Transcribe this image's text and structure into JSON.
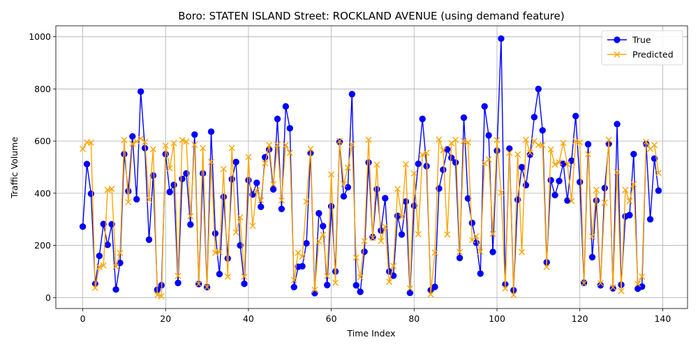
{
  "chart_data": {
    "type": "line",
    "title": "Boro: STATEN ISLAND Street: ROCKLAND AVENUE (using demand feature)",
    "xlabel": "Time Index",
    "ylabel": "Traffic Volume",
    "xlim": [
      -6.5,
      146
    ],
    "ylim": [
      -42,
      1042
    ],
    "xticks": [
      0,
      20,
      40,
      60,
      80,
      100,
      120,
      140
    ],
    "yticks": [
      0,
      200,
      400,
      600,
      800,
      1000
    ],
    "grid": true,
    "legend_position": "top-right",
    "series": [
      {
        "name": "True",
        "color": "#0000ff",
        "marker": "circle",
        "values": [
          272,
          512,
          398,
          52,
          160,
          282,
          202,
          281,
          31,
          133,
          550,
          408,
          618,
          377,
          790,
          573,
          222,
          468,
          30,
          47,
          550,
          405,
          432,
          56,
          455,
          476,
          280,
          625,
          52,
          476,
          40,
          636,
          246,
          90,
          386,
          150,
          454,
          520,
          200,
          53,
          450,
          395,
          440,
          348,
          538,
          568,
          415,
          685,
          340,
          733,
          649,
          40,
          118,
          120,
          208,
          555,
          17,
          323,
          274,
          48,
          350,
          100,
          597,
          388,
          423,
          780,
          47,
          22,
          176,
          518,
          232,
          415,
          257,
          381,
          100,
          84,
          313,
          242,
          368,
          18,
          352,
          513,
          685,
          504,
          28,
          41,
          418,
          490,
          568,
          536,
          518,
          152,
          690,
          380,
          286,
          210,
          92,
          733,
          622,
          175,
          563,
          993,
          50,
          571,
          28,
          375,
          500,
          431,
          548,
          692,
          800,
          641,
          135,
          450,
          393,
          447,
          513,
          372,
          525,
          696,
          443,
          57,
          588,
          155,
          372,
          47,
          420,
          590,
          35,
          665,
          49,
          311,
          316,
          550,
          34,
          42,
          589,
          300,
          533,
          410
        ]
      },
      {
        "name": "Predicted",
        "color": "#ffa500",
        "marker": "x",
        "values": [
          570,
          595,
          594,
          37,
          118,
          123,
          413,
          417,
          119,
          171,
          604,
          366,
          590,
          599,
          610,
          597,
          375,
          569,
          10,
          5,
          583,
          496,
          592,
          83,
          604,
          598,
          312,
          586,
          52,
          573,
          40,
          520,
          172,
          174,
          493,
          80,
          574,
          250,
          308,
          80,
          539,
          275,
          411,
          373,
          515,
          585,
          434,
          586,
          373,
          585,
          555,
          67,
          172,
          157,
          368,
          570,
          30,
          216,
          241,
          82,
          472,
          57,
          600,
          435,
          498,
          587,
          153,
          78,
          217,
          605,
          229,
          510,
          217,
          272,
          60,
          121,
          416,
          309,
          511,
          35,
          476,
          243,
          548,
          555,
          12,
          172,
          606,
          565,
          242,
          592,
          605,
          174,
          600,
          595,
          220,
          235,
          176,
          515,
          530,
          244,
          604,
          402,
          35,
          555,
          10,
          549,
          174,
          605,
          555,
          600,
          585,
          585,
          117,
          568,
          510,
          518,
          593,
          511,
          370,
          600,
          595,
          55,
          550,
          234,
          413,
          55,
          364,
          605,
          39,
          481,
          25,
          413,
          370,
          435,
          52,
          80,
          597,
          570,
          585,
          478
        ]
      }
    ]
  }
}
